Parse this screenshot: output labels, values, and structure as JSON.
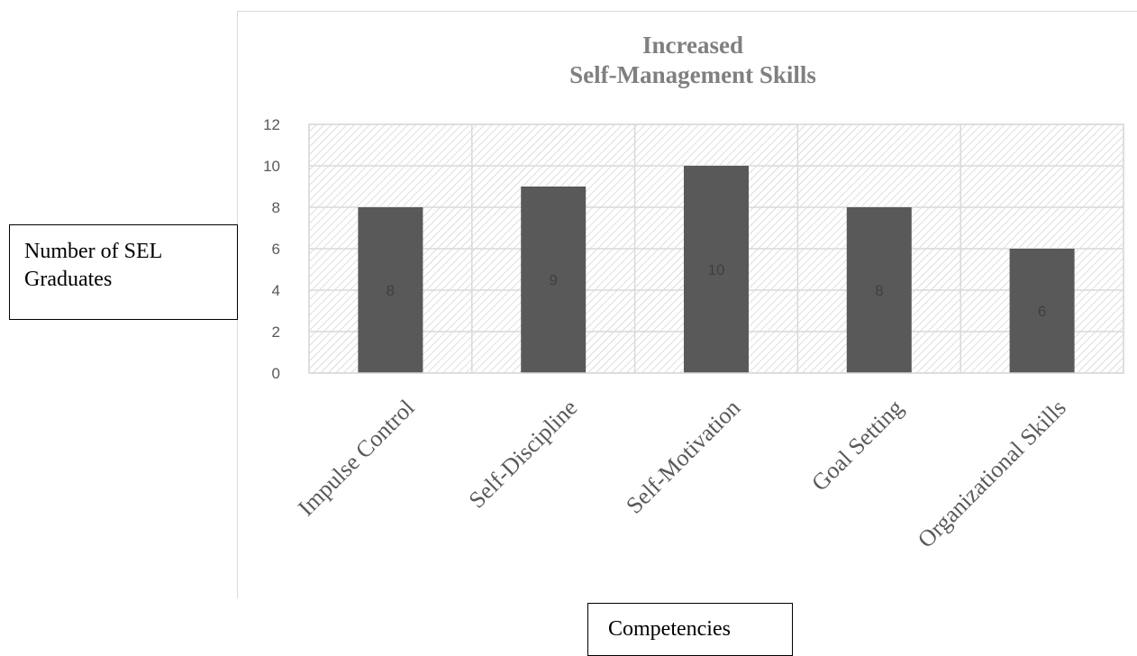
{
  "chart_data": {
    "type": "bar",
    "title_lines": [
      "Increased",
      "Self-Management Skills"
    ],
    "categories": [
      "Impulse Control",
      "Self-Discipline",
      "Self-Motivation",
      "Goal Setting",
      "Organizational Skills"
    ],
    "values": [
      8,
      9,
      10,
      8,
      6
    ],
    "data_labels": [
      "8",
      "9",
      "10",
      "8",
      "6"
    ],
    "ylim": [
      0,
      12
    ],
    "yticks": [
      "0",
      "2",
      "4",
      "6",
      "8",
      "10",
      "12"
    ],
    "ytick_values": [
      0,
      2,
      4,
      6,
      8,
      10,
      12
    ],
    "xlabel": "Competencies",
    "ylabel_lines": [
      "Number of SEL",
      "Graduates"
    ],
    "grid": true,
    "colors": {
      "bar": "#595959",
      "grid": "#d9d9d9",
      "hatch": "#c8c8c8",
      "title": "#808080"
    }
  }
}
